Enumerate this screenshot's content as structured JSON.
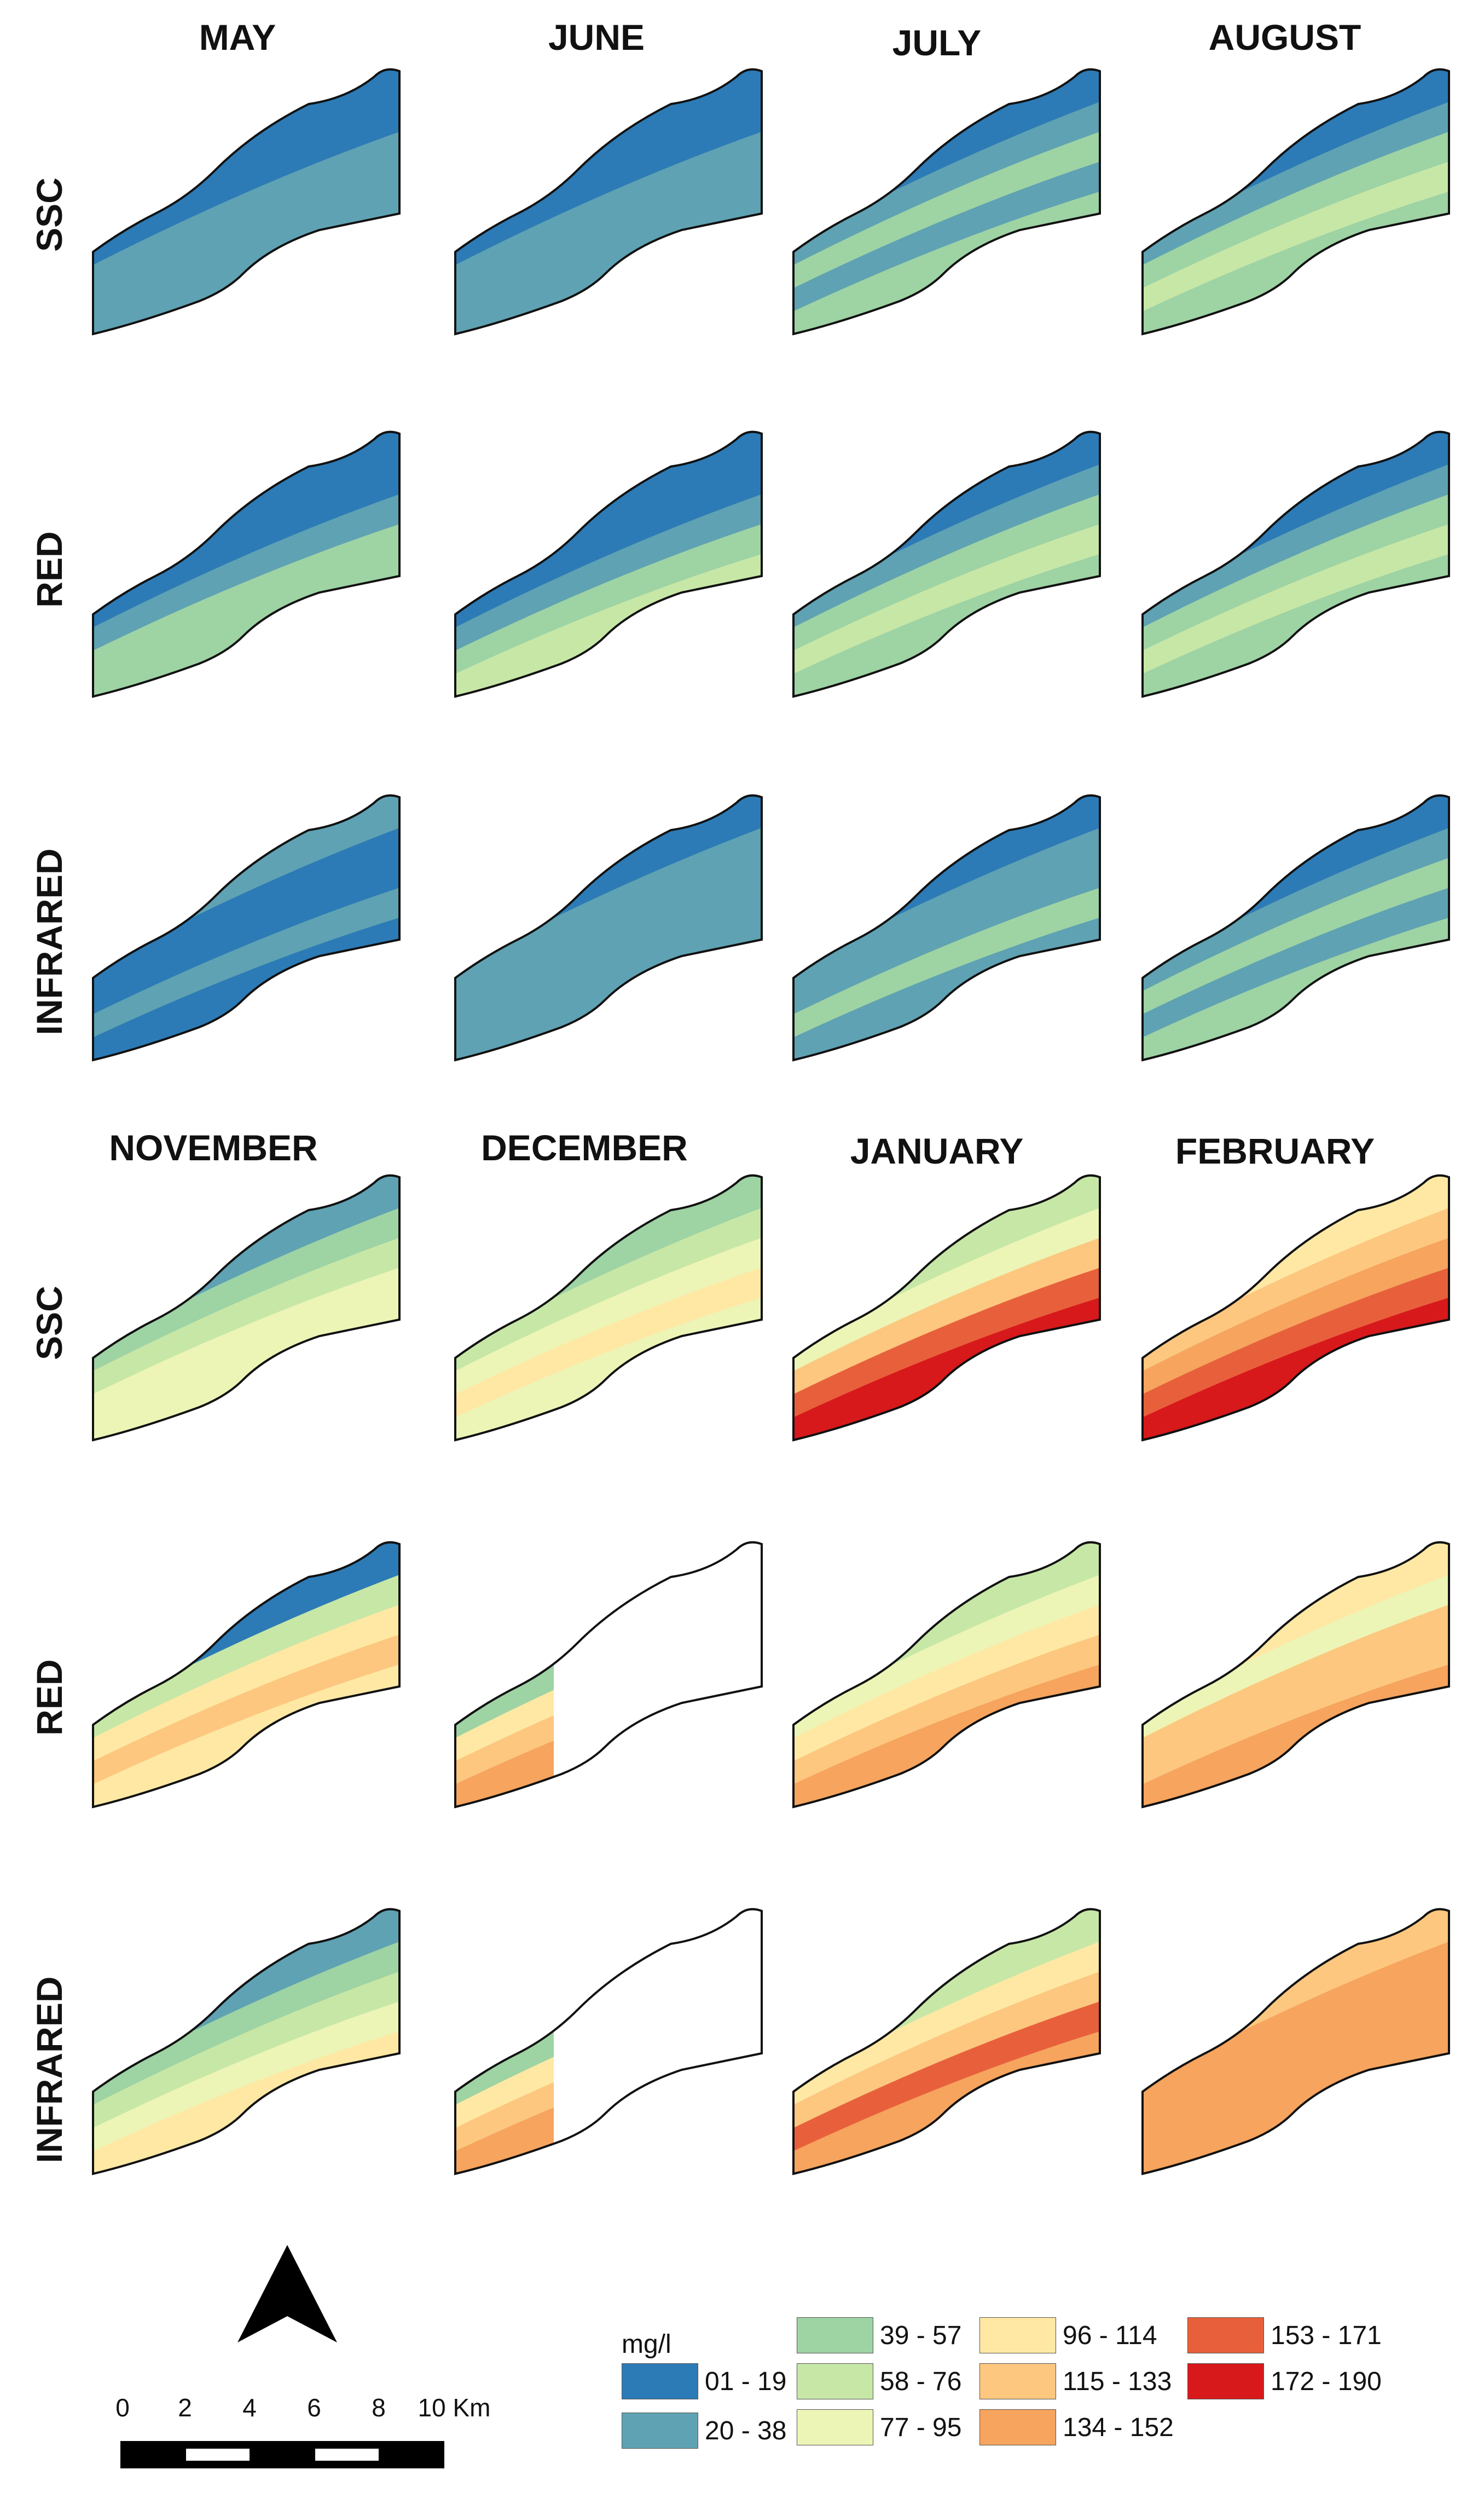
{
  "months_top": [
    "MAY",
    "JUNE",
    "JULY",
    "AUGUST"
  ],
  "months_bottom": [
    "NOVEMBER",
    "DECEMBER",
    "JANUARY",
    "FEBRUARY"
  ],
  "row_labels": [
    "SSC",
    "RED",
    "INFRARED"
  ],
  "legend": {
    "unit": "mg/l",
    "classes": [
      {
        "label": "01 - 19",
        "color": "#2c7bb6"
      },
      {
        "label": "20 - 38",
        "color": "#5fa2b3"
      },
      {
        "label": "39 - 57",
        "color": "#9ed3a4"
      },
      {
        "label": "58 - 76",
        "color": "#c7e7a7"
      },
      {
        "label": "77 - 95",
        "color": "#ecf5b6"
      },
      {
        "label": "96 - 114",
        "color": "#fee8a4"
      },
      {
        "label": "115 - 133",
        "color": "#fdc77f"
      },
      {
        "label": "134 - 152",
        "color": "#f6a45e"
      },
      {
        "label": "153 - 171",
        "color": "#e8603b"
      },
      {
        "label": "172 - 190",
        "color": "#d7191c"
      }
    ]
  },
  "scale_bar": {
    "ticks": [
      "0",
      "2",
      "4",
      "6",
      "8",
      "10 Km"
    ]
  },
  "north_arrow": "north-arrow-icon",
  "panels_top": [
    [
      {
        "band_colors": [
          "#2c7bb6",
          "#2c7bb6",
          "#5fa2b3",
          "#5fa2b3",
          "#5fa2b3"
        ],
        "blank": false
      },
      {
        "band_colors": [
          "#2c7bb6",
          "#2c7bb6",
          "#5fa2b3",
          "#5fa2b3",
          "#5fa2b3"
        ],
        "blank": false
      },
      {
        "band_colors": [
          "#2c7bb6",
          "#5fa2b3",
          "#9ed3a4",
          "#5fa2b3",
          "#9ed3a4"
        ],
        "blank": false
      },
      {
        "band_colors": [
          "#2c7bb6",
          "#5fa2b3",
          "#9ed3a4",
          "#c7e7a7",
          "#9ed3a4"
        ],
        "blank": false
      }
    ],
    [
      {
        "band_colors": [
          "#2c7bb6",
          "#2c7bb6",
          "#5fa2b3",
          "#9ed3a4",
          "#9ed3a4"
        ],
        "blank": false
      },
      {
        "band_colors": [
          "#2c7bb6",
          "#2c7bb6",
          "#5fa2b3",
          "#9ed3a4",
          "#c7e7a7"
        ],
        "blank": false
      },
      {
        "band_colors": [
          "#2c7bb6",
          "#5fa2b3",
          "#9ed3a4",
          "#c7e7a7",
          "#9ed3a4"
        ],
        "blank": false
      },
      {
        "band_colors": [
          "#2c7bb6",
          "#5fa2b3",
          "#9ed3a4",
          "#c7e7a7",
          "#9ed3a4"
        ],
        "blank": false
      }
    ],
    [
      {
        "band_colors": [
          "#5fa2b3",
          "#2c7bb6",
          "#2c7bb6",
          "#5fa2b3",
          "#2c7bb6"
        ],
        "blank": false
      },
      {
        "band_colors": [
          "#2c7bb6",
          "#5fa2b3",
          "#5fa2b3",
          "#5fa2b3",
          "#5fa2b3"
        ],
        "blank": false
      },
      {
        "band_colors": [
          "#2c7bb6",
          "#5fa2b3",
          "#5fa2b3",
          "#9ed3a4",
          "#5fa2b3"
        ],
        "blank": false
      },
      {
        "band_colors": [
          "#2c7bb6",
          "#5fa2b3",
          "#9ed3a4",
          "#5fa2b3",
          "#9ed3a4"
        ],
        "blank": false
      }
    ]
  ],
  "panels_bottom": [
    [
      {
        "band_colors": [
          "#5fa2b3",
          "#9ed3a4",
          "#c7e7a7",
          "#ecf5b6",
          "#ecf5b6"
        ],
        "blank": false
      },
      {
        "band_colors": [
          "#9ed3a4",
          "#c7e7a7",
          "#ecf5b6",
          "#fee8a4",
          "#ecf5b6"
        ],
        "blank": false
      },
      {
        "band_colors": [
          "#c7e7a7",
          "#ecf5b6",
          "#fdc77f",
          "#e8603b",
          "#d7191c"
        ],
        "blank": false
      },
      {
        "band_colors": [
          "#fee8a4",
          "#fdc77f",
          "#f6a45e",
          "#e8603b",
          "#d7191c"
        ],
        "blank": false
      }
    ],
    [
      {
        "band_colors": [
          "#2c7bb6",
          "#c7e7a7",
          "#fee8a4",
          "#fdc77f",
          "#fee8a4"
        ],
        "blank": false
      },
      {
        "band_colors": [
          "#2c7bb6",
          "#9ed3a4",
          "#fee8a4",
          "#fdc77f",
          "#f6a45e"
        ],
        "blank": true
      },
      {
        "band_colors": [
          "#c7e7a7",
          "#ecf5b6",
          "#fee8a4",
          "#fdc77f",
          "#f6a45e"
        ],
        "blank": false
      },
      {
        "band_colors": [
          "#fee8a4",
          "#ecf5b6",
          "#fdc77f",
          "#fdc77f",
          "#f6a45e"
        ],
        "blank": false
      }
    ],
    [
      {
        "band_colors": [
          "#5fa2b3",
          "#9ed3a4",
          "#c7e7a7",
          "#ecf5b6",
          "#fee8a4"
        ],
        "blank": false
      },
      {
        "band_colors": [
          "#2c7bb6",
          "#9ed3a4",
          "#fee8a4",
          "#fdc77f",
          "#f6a45e"
        ],
        "blank": true
      },
      {
        "band_colors": [
          "#c7e7a7",
          "#fee8a4",
          "#fdc77f",
          "#e8603b",
          "#f6a45e"
        ],
        "blank": false
      },
      {
        "band_colors": [
          "#fdc77f",
          "#f6a45e",
          "#f6a45e",
          "#f6a45e",
          "#f6a45e"
        ],
        "blank": false
      }
    ]
  ]
}
